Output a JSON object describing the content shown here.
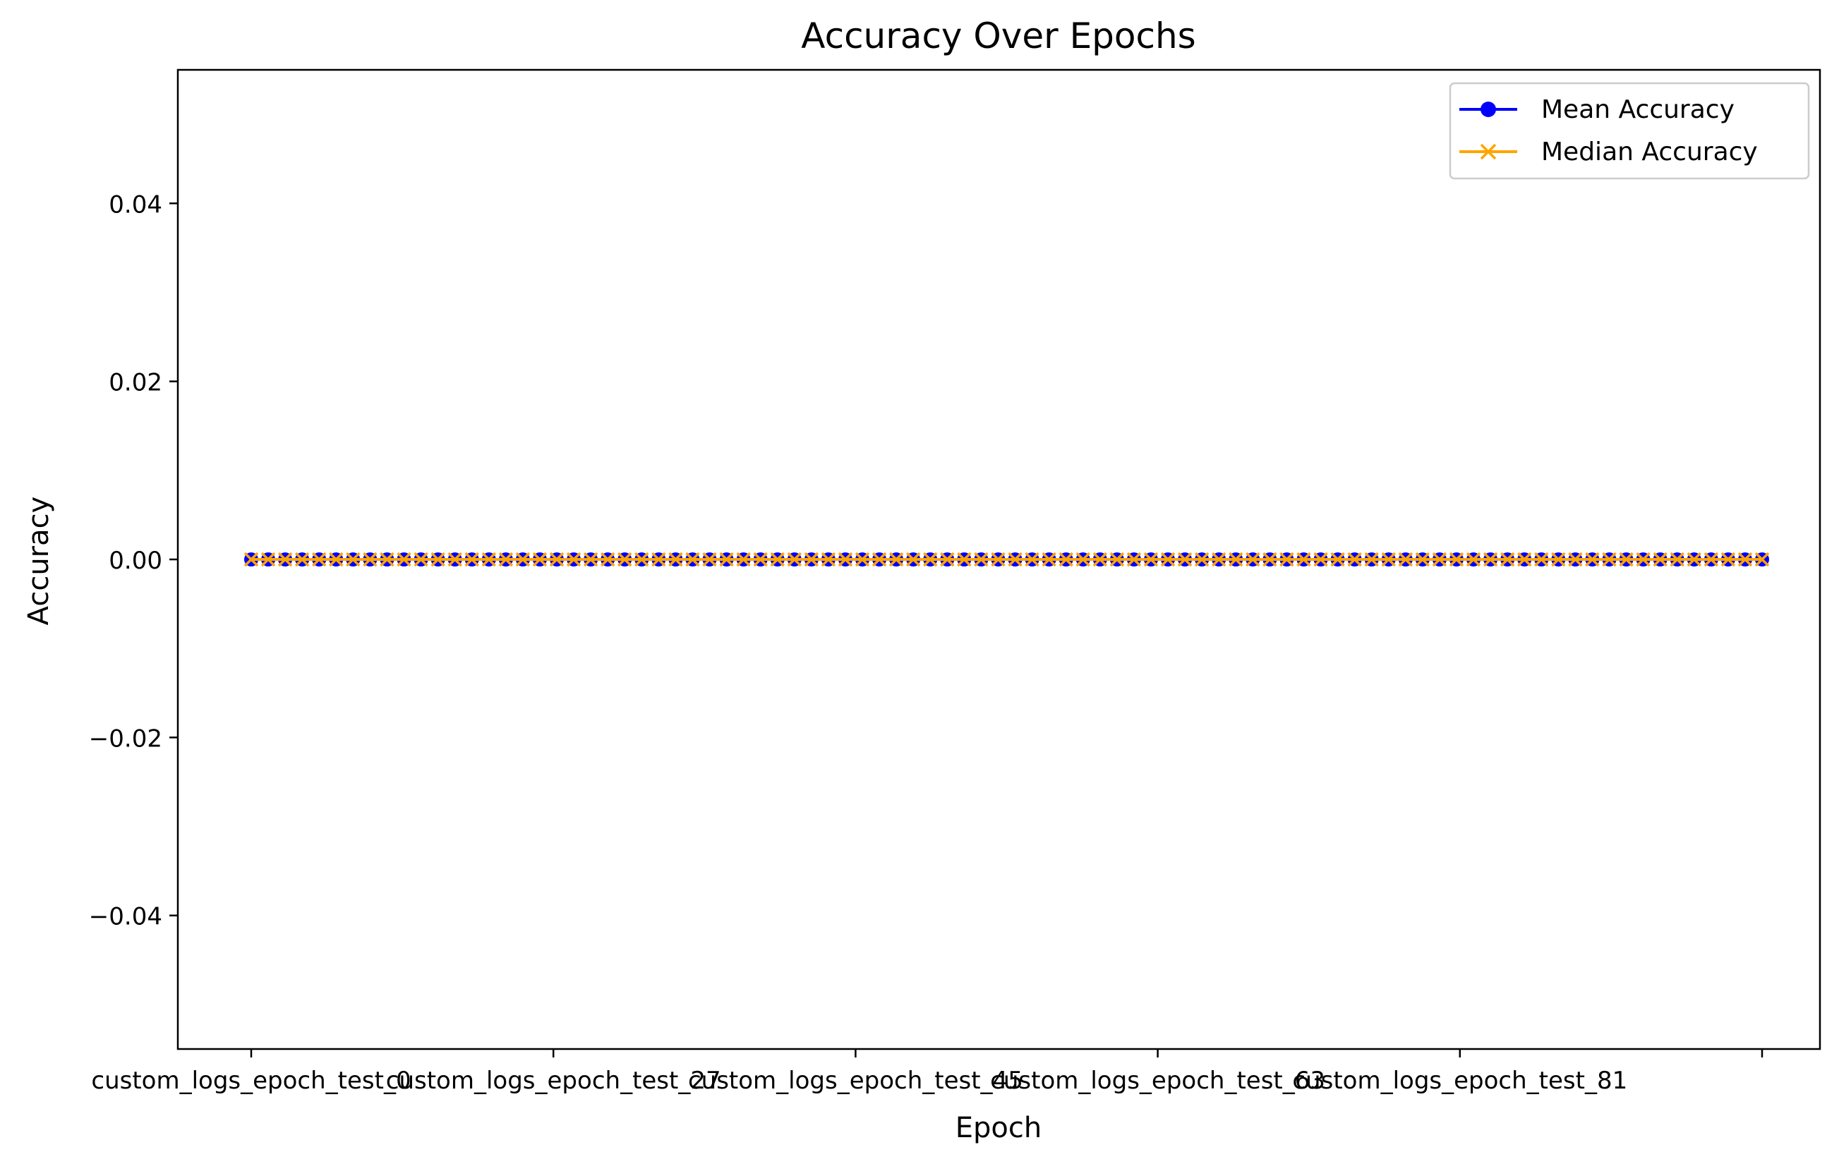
{
  "chart_data": {
    "type": "line",
    "title": "Accuracy Over Epochs",
    "xlabel": "Epoch",
    "ylabel": "Accuracy",
    "point_count": 90,
    "x_ticks": [
      "custom_logs_epoch_test_0",
      "custom_logs_epoch_test_27",
      "custom_logs_epoch_test_45",
      "custom_logs_epoch_test_63",
      "custom_logs_epoch_test_81",
      ""
    ],
    "y_ticks": [
      "0.04",
      "0.02",
      "0.00",
      "−0.02",
      "−0.04"
    ],
    "y_tick_values": [
      0.04,
      0.02,
      0.0,
      -0.02,
      -0.04
    ],
    "ylim": [
      -0.055,
      0.055
    ],
    "grid": false,
    "legend_position": "top-right",
    "series": [
      {
        "name": "Mean Accuracy",
        "color": "#0000ff",
        "marker": "circle",
        "value": 0
      },
      {
        "name": "Median Accuracy",
        "color": "#ffa500",
        "marker": "x",
        "value": 0
      }
    ]
  }
}
